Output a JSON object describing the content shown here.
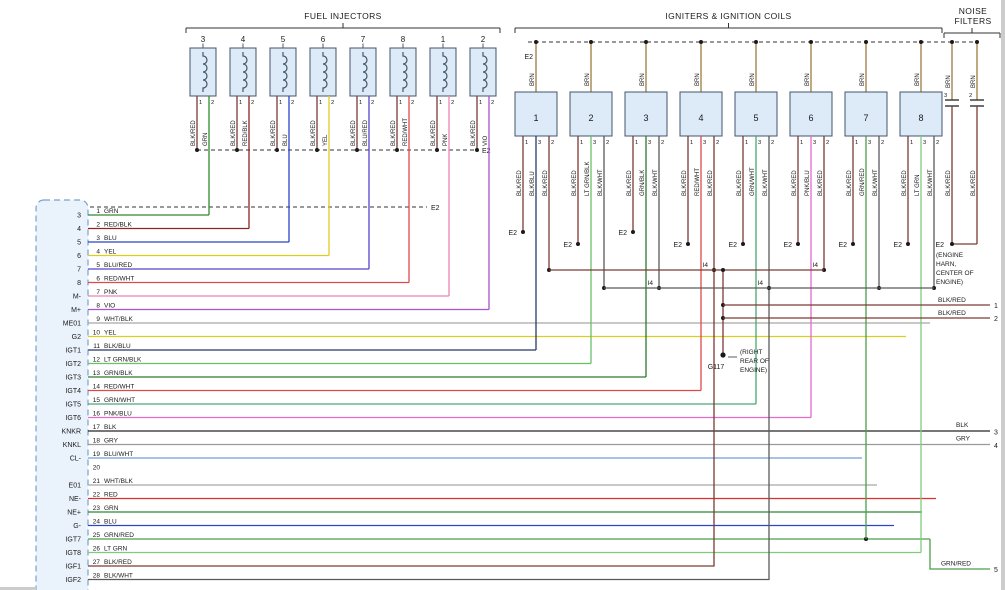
{
  "diagram": {
    "groups": {
      "fuel_injectors": {
        "label": "FUEL INJECTORS"
      },
      "igniters": {
        "label": "IGNITERS & IGNITION COILS"
      },
      "noise_filters": {
        "label_line1": "NOISE",
        "label_line2": "FILTERS"
      }
    },
    "fuel_injectors": [
      {
        "number": "3",
        "pins": [
          {
            "pin": "1",
            "wire": "BLK/RED"
          },
          {
            "pin": "2",
            "wire": "GRN"
          }
        ]
      },
      {
        "number": "4",
        "pins": [
          {
            "pin": "1",
            "wire": "BLK/RED"
          },
          {
            "pin": "2",
            "wire": "RED/BLK"
          }
        ]
      },
      {
        "number": "5",
        "pins": [
          {
            "pin": "1",
            "wire": "BLK/RED"
          },
          {
            "pin": "2",
            "wire": "BLU"
          }
        ]
      },
      {
        "number": "6",
        "pins": [
          {
            "pin": "1",
            "wire": "BLK/RED"
          },
          {
            "pin": "2",
            "wire": "YEL"
          }
        ]
      },
      {
        "number": "7",
        "pins": [
          {
            "pin": "1",
            "wire": "BLK/RED"
          },
          {
            "pin": "2",
            "wire": "BLU/RED"
          }
        ]
      },
      {
        "number": "8",
        "pins": [
          {
            "pin": "1",
            "wire": "BLK/RED"
          },
          {
            "pin": "2",
            "wire": "RED/WHT"
          }
        ]
      },
      {
        "number": "1",
        "pins": [
          {
            "pin": "1",
            "wire": "BLK/RED"
          },
          {
            "pin": "2",
            "wire": "PNK"
          }
        ]
      },
      {
        "number": "2",
        "pins": [
          {
            "pin": "1",
            "wire": "BLK/RED"
          },
          {
            "pin": "2",
            "wire": "VIO"
          }
        ]
      }
    ],
    "igniters": [
      {
        "number": "1",
        "top_wire": "BRN",
        "pins": [
          {
            "pin": "1",
            "wire": "BLK/RED"
          },
          {
            "pin": "3",
            "wire": "BLK/BLU"
          },
          {
            "pin": "2",
            "wire": "BLK/RED"
          }
        ]
      },
      {
        "number": "2",
        "top_wire": "BRN",
        "pins": [
          {
            "pin": "1",
            "wire": "BLK/RED"
          },
          {
            "pin": "3",
            "wire": "LT GRN/BLK"
          },
          {
            "pin": "2",
            "wire": "BLK/WHT"
          }
        ]
      },
      {
        "number": "3",
        "top_wire": "BRN",
        "pins": [
          {
            "pin": "1",
            "wire": "BLK/RED"
          },
          {
            "pin": "3",
            "wire": "GRN/BLK"
          },
          {
            "pin": "2",
            "wire": "BLK/WHT"
          }
        ]
      },
      {
        "number": "4",
        "top_wire": "BRN",
        "pins": [
          {
            "pin": "1",
            "wire": "BLK/RED"
          },
          {
            "pin": "3",
            "wire": "RED/WHT"
          },
          {
            "pin": "2",
            "wire": "BLK/RED"
          }
        ]
      },
      {
        "number": "5",
        "top_wire": "BRN",
        "pins": [
          {
            "pin": "1",
            "wire": "BLK/RED"
          },
          {
            "pin": "3",
            "wire": "GRN/WHT"
          },
          {
            "pin": "2",
            "wire": "BLK/WHT"
          }
        ]
      },
      {
        "number": "6",
        "top_wire": "BRN",
        "pins": [
          {
            "pin": "1",
            "wire": "BLK/RED"
          },
          {
            "pin": "3",
            "wire": "PNK/BLU"
          },
          {
            "pin": "2",
            "wire": "BLK/RED"
          }
        ]
      },
      {
        "number": "7",
        "top_wire": "BRN",
        "pins": [
          {
            "pin": "1",
            "wire": "BLK/RED"
          },
          {
            "pin": "3",
            "wire": "GRN/RED"
          },
          {
            "pin": "2",
            "wire": "BLK/WHT"
          }
        ]
      },
      {
        "number": "8",
        "top_wire": "BRN",
        "pins": [
          {
            "pin": "1",
            "wire": "BLK/RED"
          },
          {
            "pin": "3",
            "wire": "LT GRN"
          },
          {
            "pin": "2",
            "wire": "BLK/WHT"
          }
        ]
      }
    ],
    "noise_filters": [
      {
        "pin_top": "3",
        "top_wire": "BRN",
        "bottom_wire": "BLK/RED"
      },
      {
        "pin_top": "2",
        "top_wire": "BRN",
        "bottom_wire": "BLK/RED"
      }
    ],
    "connector": {
      "rows": [
        {
          "outer": "3",
          "pin": "1",
          "wire": "GRN"
        },
        {
          "outer": "4",
          "pin": "2",
          "wire": "RED/BLK"
        },
        {
          "outer": "5",
          "pin": "3",
          "wire": "BLU"
        },
        {
          "outer": "6",
          "pin": "4",
          "wire": "YEL"
        },
        {
          "outer": "7",
          "pin": "5",
          "wire": "BLU/RED"
        },
        {
          "outer": "8",
          "pin": "6",
          "wire": "RED/WHT"
        },
        {
          "outer": "M-",
          "pin": "7",
          "wire": "PNK"
        },
        {
          "outer": "M+",
          "pin": "8",
          "wire": "VIO"
        },
        {
          "outer": "ME01",
          "pin": "9",
          "wire": "WHT/BLK"
        },
        {
          "outer": "G2",
          "pin": "10",
          "wire": "YEL"
        },
        {
          "outer": "IGT1",
          "pin": "11",
          "wire": "BLK/BLU"
        },
        {
          "outer": "IGT2",
          "pin": "12",
          "wire": "LT GRN/BLK"
        },
        {
          "outer": "IGT3",
          "pin": "13",
          "wire": "GRN/BLK"
        },
        {
          "outer": "IGT4",
          "pin": "14",
          "wire": "RED/WHT"
        },
        {
          "outer": "IGT5",
          "pin": "15",
          "wire": "GRN/WHT"
        },
        {
          "outer": "IGT6",
          "pin": "16",
          "wire": "PNK/BLU"
        },
        {
          "outer": "KNKR",
          "pin": "17",
          "wire": "BLK"
        },
        {
          "outer": "KNKL",
          "pin": "18",
          "wire": "GRY"
        },
        {
          "outer": "CL-",
          "pin": "19",
          "wire": "BLU/WHT"
        },
        {
          "outer": "",
          "pin": "20",
          "wire": ""
        },
        {
          "outer": "E01",
          "pin": "21",
          "wire": "WHT/BLK"
        },
        {
          "outer": "NE-",
          "pin": "22",
          "wire": "RED"
        },
        {
          "outer": "NE+",
          "pin": "23",
          "wire": "GRN"
        },
        {
          "outer": "G-",
          "pin": "24",
          "wire": "BLU"
        },
        {
          "outer": "IGT7",
          "pin": "25",
          "wire": "GRN/RED"
        },
        {
          "outer": "IGT8",
          "pin": "26",
          "wire": "LT GRN"
        },
        {
          "outer": "IGF1",
          "pin": "27",
          "wire": "BLK/RED"
        },
        {
          "outer": "IGF2",
          "pin": "28",
          "wire": "BLK/WHT"
        }
      ]
    },
    "right_edge": [
      {
        "pin": "1",
        "wire": "BLK/RED"
      },
      {
        "pin": "2",
        "wire": "BLK/RED"
      },
      {
        "pin": "3",
        "wire": "BLK"
      },
      {
        "pin": "4",
        "wire": "GRY"
      },
      {
        "pin": "5",
        "wire": "GRN/RED"
      }
    ],
    "annotations": {
      "e2": "E2",
      "i4": "I4",
      "g117": "G117",
      "engine_harn": [
        "(ENGINE",
        "HARN,",
        "CENTER OF",
        "ENGINE)"
      ],
      "right_rear": [
        "(RIGHT",
        "REAR OF",
        "ENGINE)"
      ]
    },
    "wire_colors": {
      "GRN": "#2e8b2e",
      "RED/BLK": "#8b2424",
      "BLU": "#2a46c8",
      "YEL": "#ddcc22",
      "BLU/RED": "#5544cc",
      "RED/WHT": "#e04848",
      "PNK": "#ee82b4",
      "VIO": "#a852cc",
      "WHT/BLK": "#a8a8a8",
      "BLK/BLU": "#283868",
      "LT GRN/BLK": "#6abf69",
      "GRN/BLK": "#2d7a2d",
      "GRN/WHT": "#4aa870",
      "PNK/BLU": "#e46ac8",
      "BLK": "#262626",
      "GRY": "#9a9a9a",
      "BLU/WHT": "#6e9fd8",
      "RED": "#d83030",
      "GRN/RED": "#4a9e4a",
      "LT GRN": "#7ccc7c",
      "BLK/RED": "#7d3a34",
      "BLK/WHT": "#5a5a5a",
      "BRN": "#9b7b3d"
    }
  }
}
